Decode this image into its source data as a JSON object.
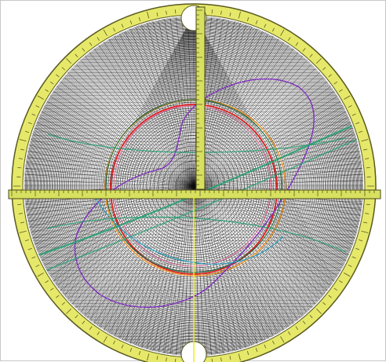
{
  "colors": {
    "background": "#ffffff",
    "mesh": "#111111",
    "rim_fill": "#e6e86a",
    "rim_stroke": "#5a5a20",
    "ruler_fill": "#d8e060",
    "ruler_stroke": "#4a4a1a",
    "hole_fill": "#ffffff",
    "accent_yellow_line": "#f0f000"
  },
  "mesh": {
    "radial_lines": 180,
    "circles": 90
  },
  "curves": [
    {
      "name": "red-ring",
      "color": "#e02020"
    },
    {
      "name": "orange-ring",
      "color": "#f09020"
    },
    {
      "name": "pink-ring",
      "color": "#e870a0"
    },
    {
      "name": "purple-loop",
      "color": "#8030c0"
    },
    {
      "name": "green-band",
      "color": "#20a070"
    },
    {
      "name": "cyan-curve",
      "color": "#20a0c0"
    },
    {
      "name": "dark-green-ring",
      "color": "#1a6a3a"
    }
  ]
}
